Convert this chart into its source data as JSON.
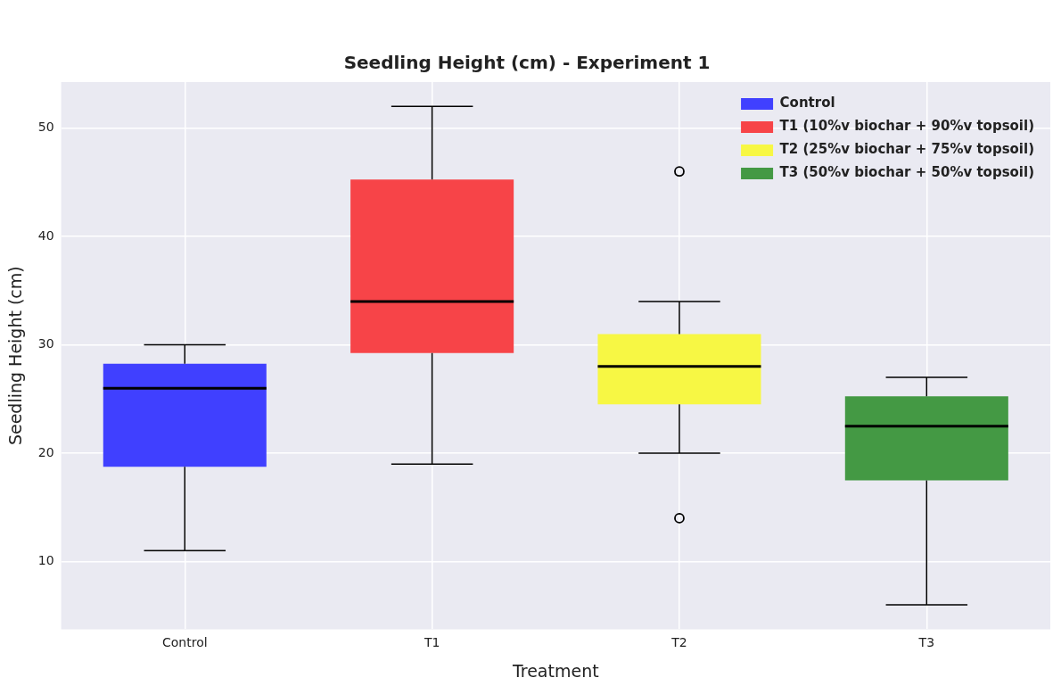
{
  "chart_data": {
    "type": "box",
    "title": "Seedling Height (cm) - Experiment 1",
    "xlabel": "Treatment",
    "ylabel": "Seedling Height (cm)",
    "categories": [
      "Control",
      "T1",
      "T2",
      "T3"
    ],
    "series": [
      {
        "name": "Control",
        "color": "#4040ff",
        "boxes": [
          {
            "low": 11,
            "q1": 18.75,
            "median": 26,
            "q3": 28.25,
            "high": 30
          },
          null,
          null,
          null
        ]
      },
      {
        "name": "T1 (10%v biochar + 90%v topsoil)",
        "color": "#f74448",
        "boxes": [
          null,
          {
            "low": 19,
            "q1": 29.25,
            "median": 34,
            "q3": 45.25,
            "high": 52
          },
          null,
          null
        ]
      },
      {
        "name": "T2 (25%v biochar + 75%v topsoil)",
        "color": "#f7f744",
        "boxes": [
          null,
          null,
          {
            "low": 20,
            "q1": 24.5,
            "median": 28,
            "q3": 31,
            "high": 34,
            "outliers": [
              46,
              14
            ]
          },
          null
        ]
      },
      {
        "name": "T3 (50%v biochar + 50%v topsoil)",
        "color": "#449944",
        "boxes": [
          null,
          null,
          null,
          {
            "low": 6,
            "q1": 17.5,
            "median": 22.5,
            "q3": 25.25,
            "high": 27
          }
        ]
      }
    ],
    "ylim": [
      3.75,
      54.25
    ],
    "yticks": [
      10,
      20,
      30,
      40,
      50
    ],
    "grid": true,
    "legend": "top right"
  }
}
